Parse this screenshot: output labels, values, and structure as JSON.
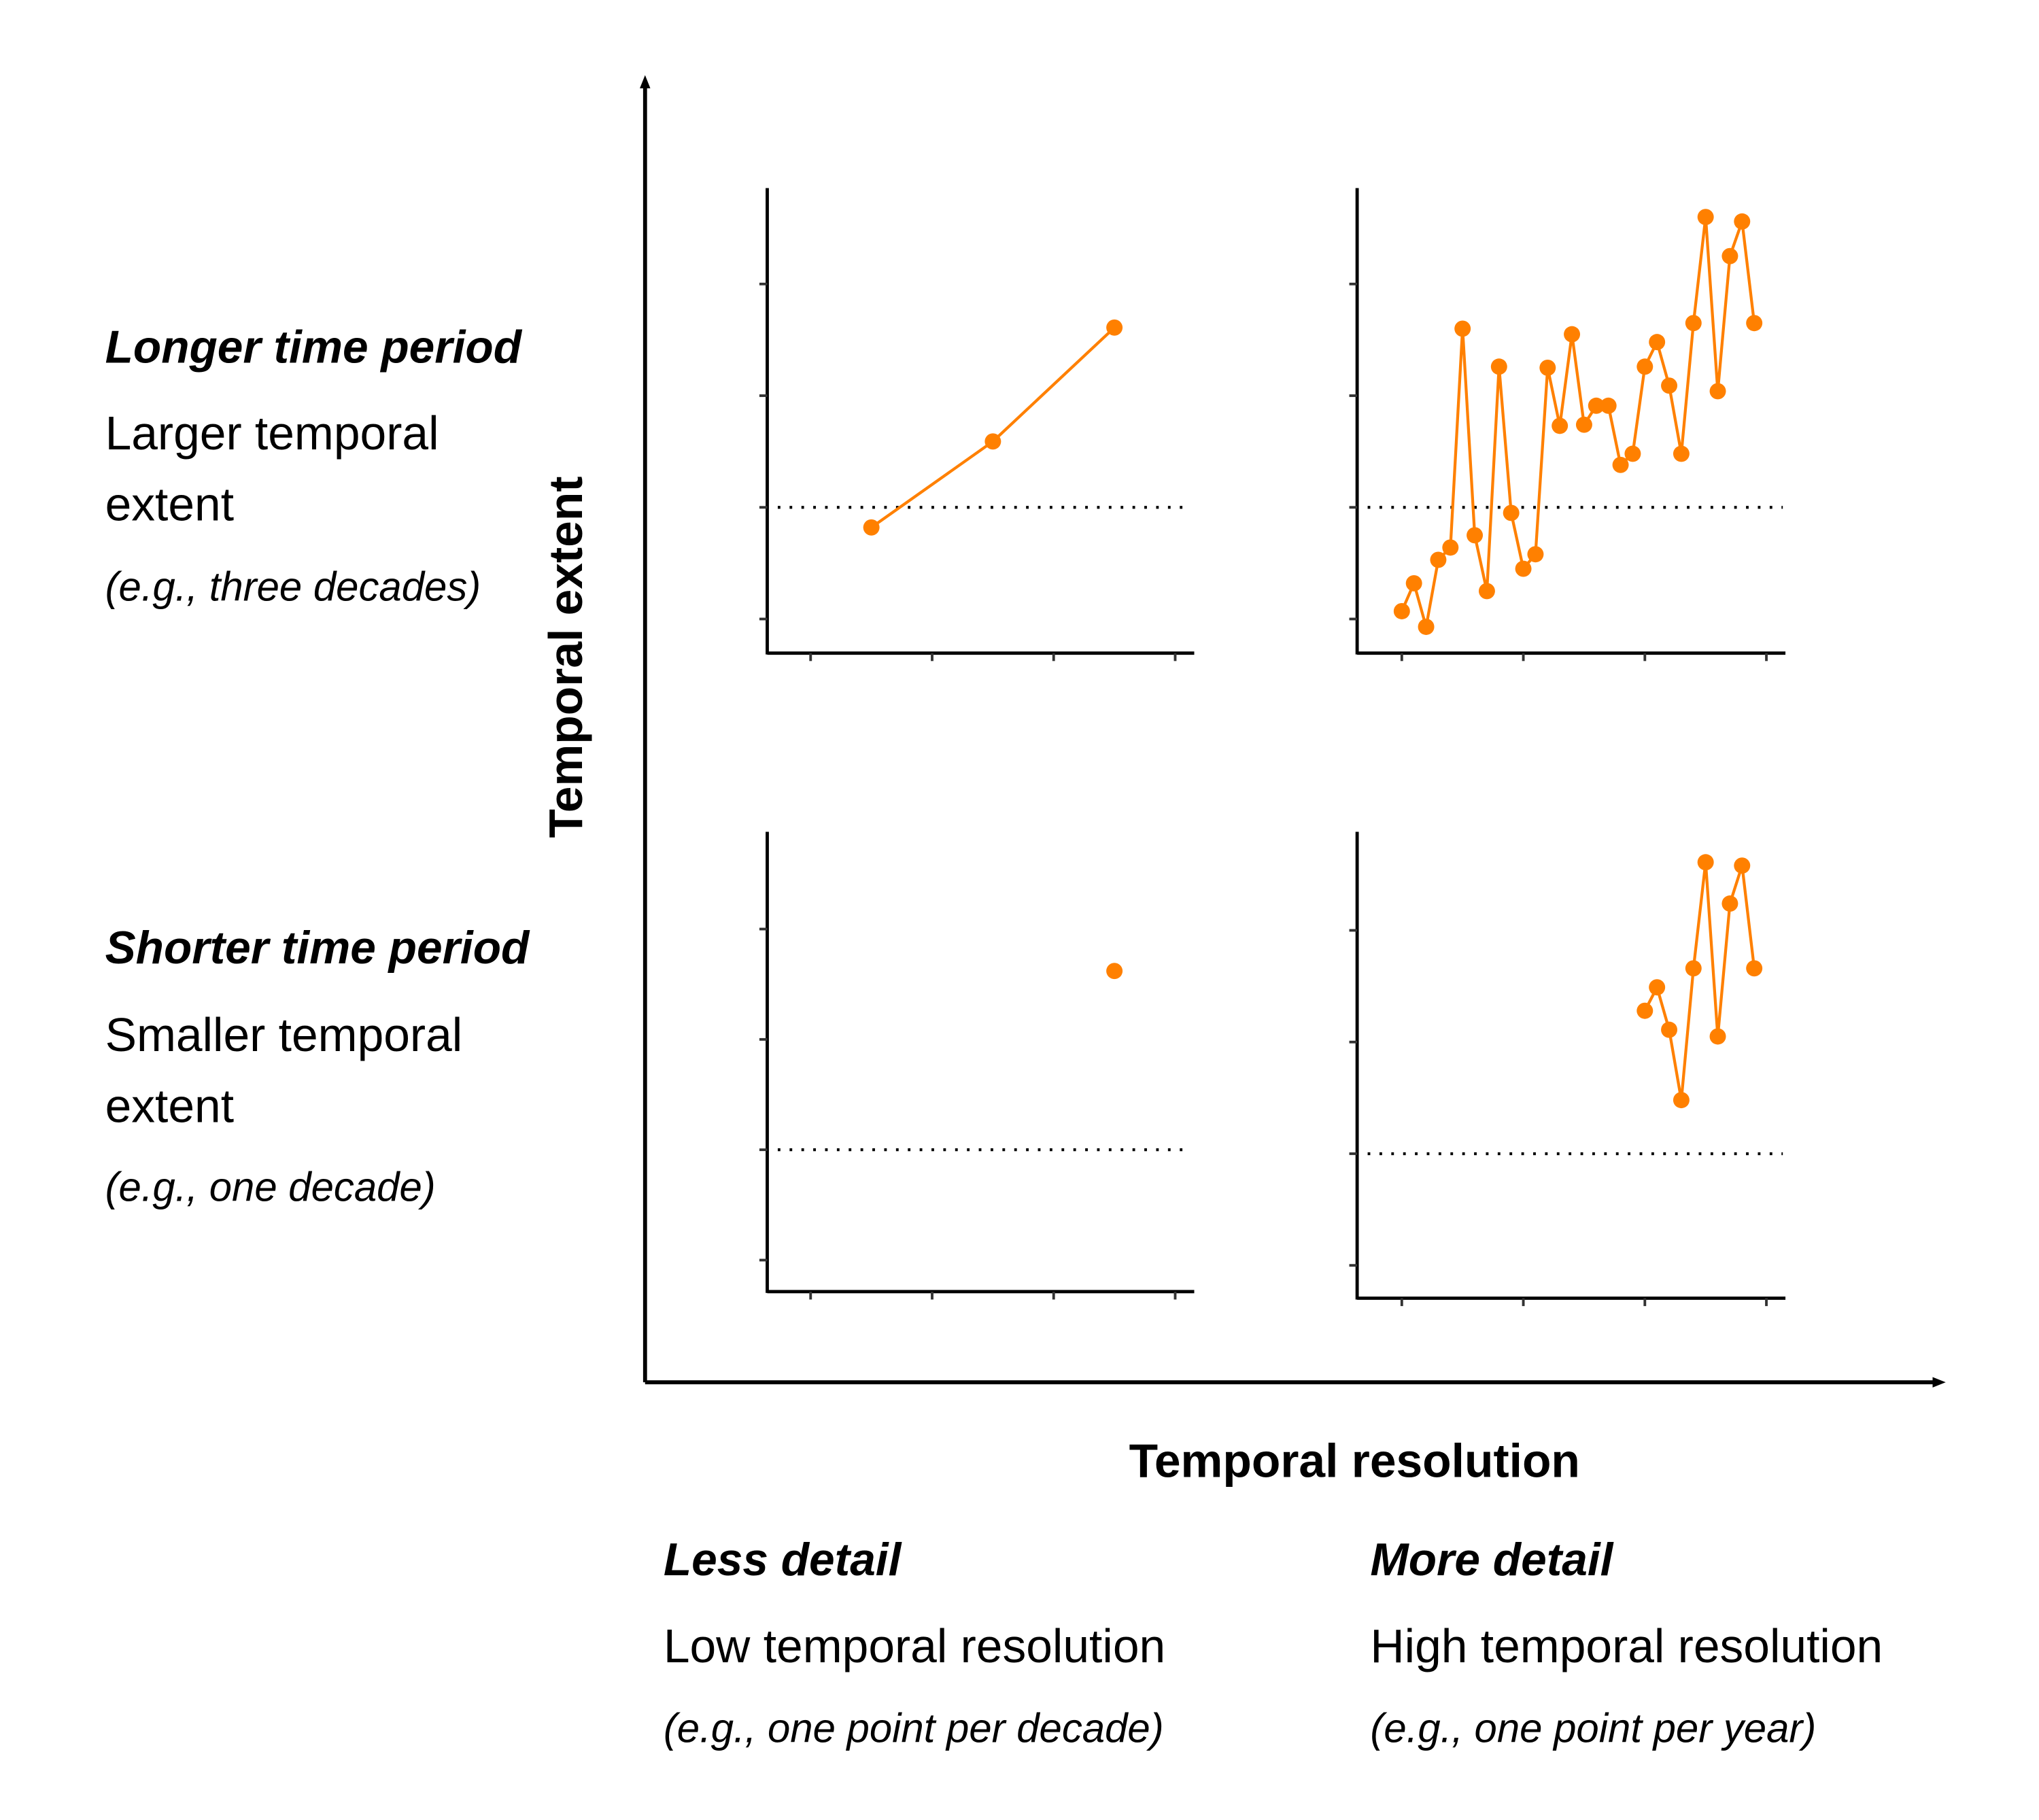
{
  "axes": {
    "y_title": "Temporal extent",
    "x_title": "Temporal resolution"
  },
  "rows": [
    {
      "heading": "Longer time period",
      "line1": "Larger temporal",
      "line2": "extent",
      "example": "(e.g., three decades)"
    },
    {
      "heading": "Shorter time period",
      "line1": "Smaller temporal",
      "line2": "extent",
      "example": "(e.g., one decade)"
    }
  ],
  "columns": [
    {
      "heading": "Less detail",
      "line1": "Low temporal resolution",
      "example": "(e.g., one point per decade)"
    },
    {
      "heading": "More detail",
      "line1": "High temporal resolution",
      "example": "(e.g., one point per year)"
    }
  ],
  "colors": {
    "series": "#FF8000",
    "axis": "#000000"
  },
  "chart_data": [
    {
      "type": "line",
      "panel": "longer-less",
      "xlim": [
        0,
        30
      ],
      "ylim": [
        -1.4,
        2.8
      ],
      "baseline": 0,
      "x": [
        5,
        15,
        25
      ],
      "y": [
        -0.18,
        0.59,
        1.61
      ]
    },
    {
      "type": "line",
      "panel": "longer-more",
      "xlim": [
        0,
        30
      ],
      "ylim": [
        -1.4,
        2.8
      ],
      "baseline": 0,
      "x": [
        0,
        1,
        2,
        3,
        4,
        5,
        6,
        7,
        8,
        9,
        10,
        11,
        12,
        13,
        14,
        15,
        16,
        17,
        18,
        19,
        20,
        21,
        22,
        23,
        24,
        25,
        26,
        27,
        28,
        29
      ],
      "y": [
        -0.93,
        -0.68,
        -1.07,
        -0.47,
        -0.36,
        1.6,
        -0.25,
        -0.75,
        1.26,
        -0.05,
        -0.55,
        -0.42,
        1.25,
        0.73,
        1.55,
        0.74,
        0.91,
        0.91,
        0.38,
        0.48,
        1.26,
        1.48,
        1.09,
        0.48,
        1.65,
        2.6,
        1.04,
        2.25,
        2.56,
        1.65
      ]
    },
    {
      "type": "line",
      "panel": "shorter-less",
      "xlim": [
        0,
        30
      ],
      "ylim": [
        -1.4,
        2.8
      ],
      "baseline": 0,
      "x": [
        25
      ],
      "y": [
        1.62
      ]
    },
    {
      "type": "line",
      "panel": "shorter-more",
      "xlim": [
        0,
        30
      ],
      "ylim": [
        -1.4,
        2.8
      ],
      "baseline": 0,
      "x": [
        20,
        21,
        22,
        23,
        24,
        25,
        26,
        27,
        28,
        29
      ],
      "y": [
        1.28,
        1.49,
        1.11,
        0.48,
        1.66,
        2.61,
        1.05,
        2.24,
        2.58,
        1.66
      ]
    }
  ]
}
